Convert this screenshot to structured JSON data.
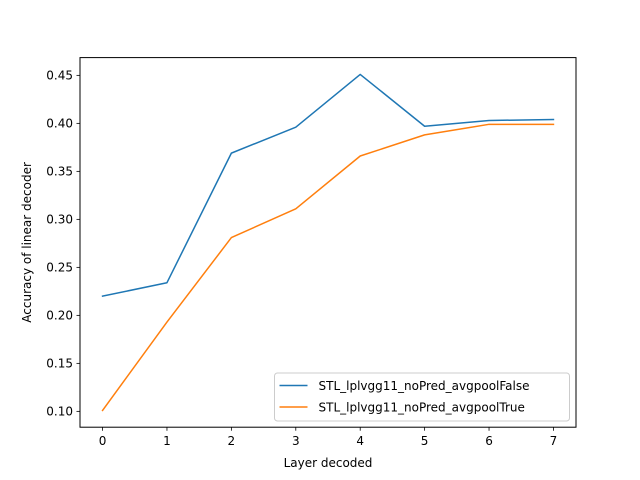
{
  "chart_data": {
    "type": "line",
    "title": "",
    "xlabel": "Layer decoded",
    "ylabel": "Accuracy of linear decoder",
    "x": [
      0,
      1,
      2,
      3,
      4,
      5,
      6,
      7
    ],
    "xlim": [
      -0.35,
      7.35
    ],
    "ylim": [
      0.0835,
      0.4685
    ],
    "xticks": [
      0,
      1,
      2,
      3,
      4,
      5,
      6,
      7
    ],
    "yticks": [
      0.1,
      0.15,
      0.2,
      0.25,
      0.3,
      0.35,
      0.4,
      0.45
    ],
    "ytick_labels": [
      "0.10",
      "0.15",
      "0.20",
      "0.25",
      "0.30",
      "0.35",
      "0.40",
      "0.45"
    ],
    "grid": false,
    "legend_position": "lower-right",
    "series": [
      {
        "name": "STL_lplvgg11_noPred_avgpoolFalse",
        "color": "#1f77b4",
        "values": [
          0.22,
          0.234,
          0.369,
          0.396,
          0.451,
          0.397,
          0.403,
          0.404
        ]
      },
      {
        "name": "STL_lplvgg11_noPred_avgpoolTrue",
        "color": "#ff7f0e",
        "values": [
          0.101,
          0.193,
          0.281,
          0.311,
          0.366,
          0.388,
          0.399,
          0.399
        ]
      }
    ]
  }
}
